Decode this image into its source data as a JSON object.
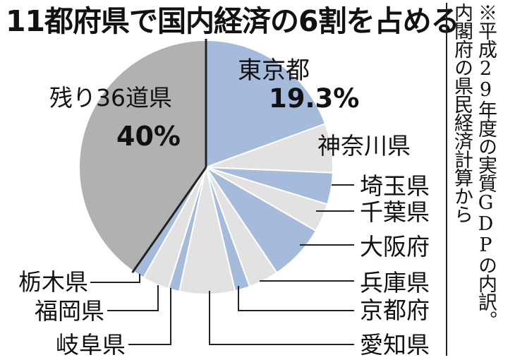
{
  "title": "11都府県で国内経済の6割を占める",
  "note": {
    "line1": "※平成29年度の実質GDPの内訳。",
    "line2": "内閣府の県民経済計算から"
  },
  "colors": {
    "blue": "#a5bbdb",
    "light_gray": "#e1e2e1",
    "dark_gray": "#b0b1b1",
    "line": "#222222"
  },
  "chart_data": {
    "type": "pie",
    "title": "11都府県で国内経済の6割を占める",
    "start_angle_deg": 0,
    "direction": "clockwise",
    "slices": [
      {
        "name": "東京都",
        "value": 19.3,
        "value_label": "19.3%",
        "color": "#a5bbdb"
      },
      {
        "name": "神奈川県",
        "value": 6.2,
        "color": "#e1e2e1"
      },
      {
        "name": "埼玉県",
        "value": 4.0,
        "color": "#a5bbdb"
      },
      {
        "name": "千葉県",
        "value": 3.6,
        "color": "#e1e2e1"
      },
      {
        "name": "大阪府",
        "value": 7.2,
        "color": "#a5bbdb"
      },
      {
        "name": "兵庫県",
        "value": 3.8,
        "color": "#e1e2e1"
      },
      {
        "name": "京都府",
        "value": 1.9,
        "color": "#a5bbdb"
      },
      {
        "name": "愛知県",
        "value": 7.0,
        "color": "#e1e2e1"
      },
      {
        "name": "岐阜県",
        "value": 1.4,
        "color": "#a5bbdb"
      },
      {
        "name": "福岡県",
        "value": 3.4,
        "color": "#e1e2e1"
      },
      {
        "name": "栃木県",
        "value": 1.5,
        "color": "#a5bbdb"
      },
      {
        "name": "残り36道県",
        "value": 40.0,
        "value_label": "40%",
        "color": "#b0b1b1"
      }
    ]
  }
}
